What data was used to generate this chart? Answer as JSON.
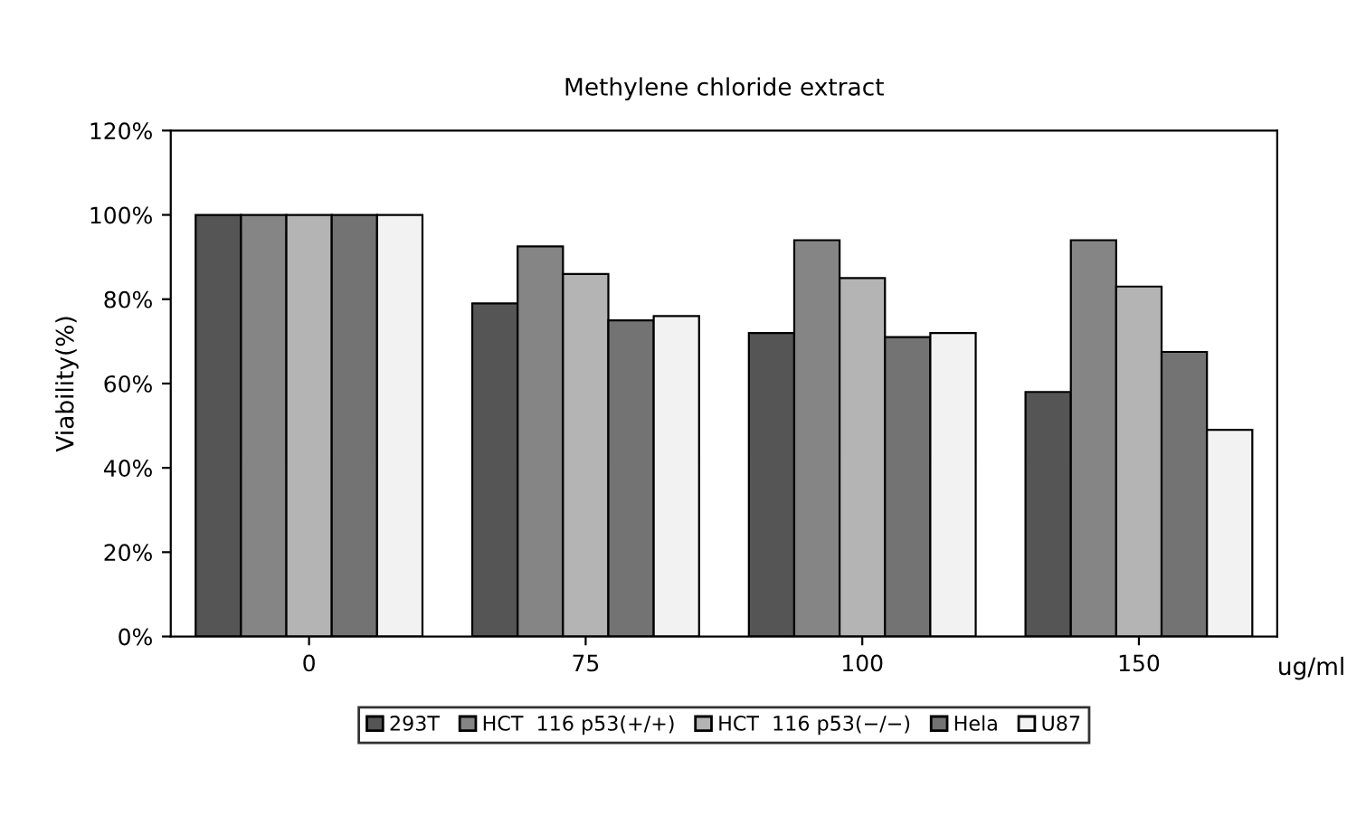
{
  "chart_data": {
    "type": "bar",
    "title": "Methylene chloride extract",
    "xlabel": "ug/ml",
    "ylabel": "Viability(%)",
    "categories": [
      "0",
      "75",
      "100",
      "150"
    ],
    "series": [
      {
        "name": "293T",
        "color": "#555555",
        "values": [
          100,
          79,
          72,
          58
        ]
      },
      {
        "name": "HCT  116 p53(+/+)",
        "color": "#858585",
        "values": [
          100,
          92.5,
          94,
          94
        ]
      },
      {
        "name": "HCT  116 p53(−/−)",
        "color": "#b4b4b4",
        "values": [
          100,
          86,
          85,
          83
        ]
      },
      {
        "name": "Hela",
        "color": "#737373",
        "values": [
          100,
          75,
          71,
          67.5
        ]
      },
      {
        "name": "U87",
        "color": "#f2f2f2",
        "values": [
          100,
          76,
          72,
          49
        ]
      }
    ],
    "ylim": [
      0,
      120
    ],
    "yticks": [
      {
        "value": 0,
        "label": "0%"
      },
      {
        "value": 20,
        "label": "20%"
      },
      {
        "value": 40,
        "label": "40%"
      },
      {
        "value": 60,
        "label": "60%"
      },
      {
        "value": 80,
        "label": "80%"
      },
      {
        "value": 100,
        "label": "100%"
      },
      {
        "value": 120,
        "label": "120%"
      }
    ],
    "grid": false,
    "legend": "bottom"
  }
}
